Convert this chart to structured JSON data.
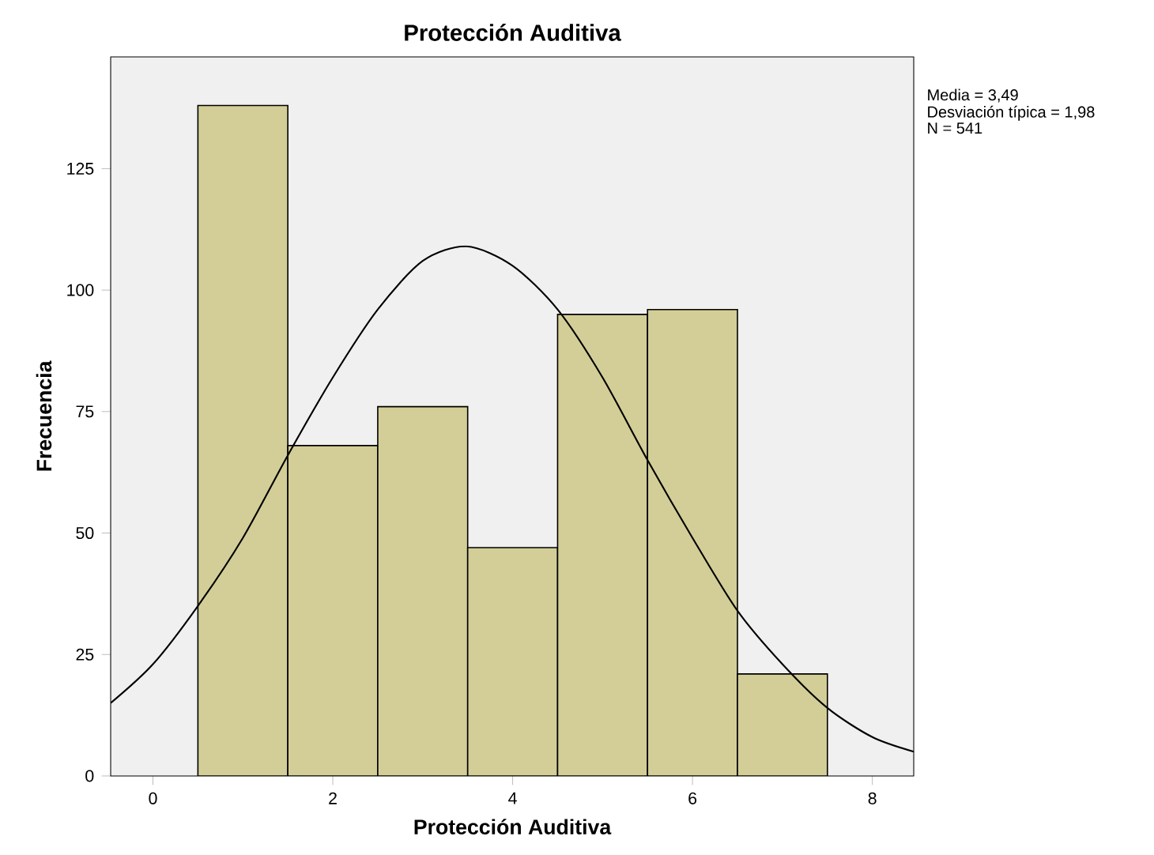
{
  "chart_data": {
    "type": "histogram",
    "title": "Protección Auditiva",
    "xlabel": "Protección Auditiva",
    "ylabel": "Frecuencia",
    "bins": [
      0.5,
      1.5,
      2.5,
      3.5,
      4.5,
      5.5,
      6.5,
      7.5
    ],
    "values": [
      138,
      68,
      76,
      47,
      95,
      96,
      21
    ],
    "color": "#d3ce97",
    "series": [
      {
        "type": "line",
        "color": "#000000",
        "x": [
          -0.47,
          0,
          0.5,
          1,
          1.5,
          2,
          2.5,
          3,
          3.49,
          4,
          4.5,
          5,
          5.5,
          6,
          6.5,
          7,
          7.5,
          8,
          8.46
        ],
        "values": [
          15,
          23,
          35,
          49,
          66,
          82,
          96,
          106,
          109,
          105,
          96,
          82,
          65,
          49,
          34,
          23,
          14,
          8,
          5
        ]
      }
    ],
    "xlim": [
      -0.47,
      8.46
    ],
    "ylim": [
      0,
      148
    ],
    "xticks": [
      0,
      2,
      4,
      6,
      8
    ],
    "yticks": [
      0,
      25,
      50,
      75,
      100,
      125
    ],
    "grid": false,
    "annotations": [
      "Media = 3,49",
      "Desviación típica = 1,98",
      "N = 541"
    ]
  }
}
